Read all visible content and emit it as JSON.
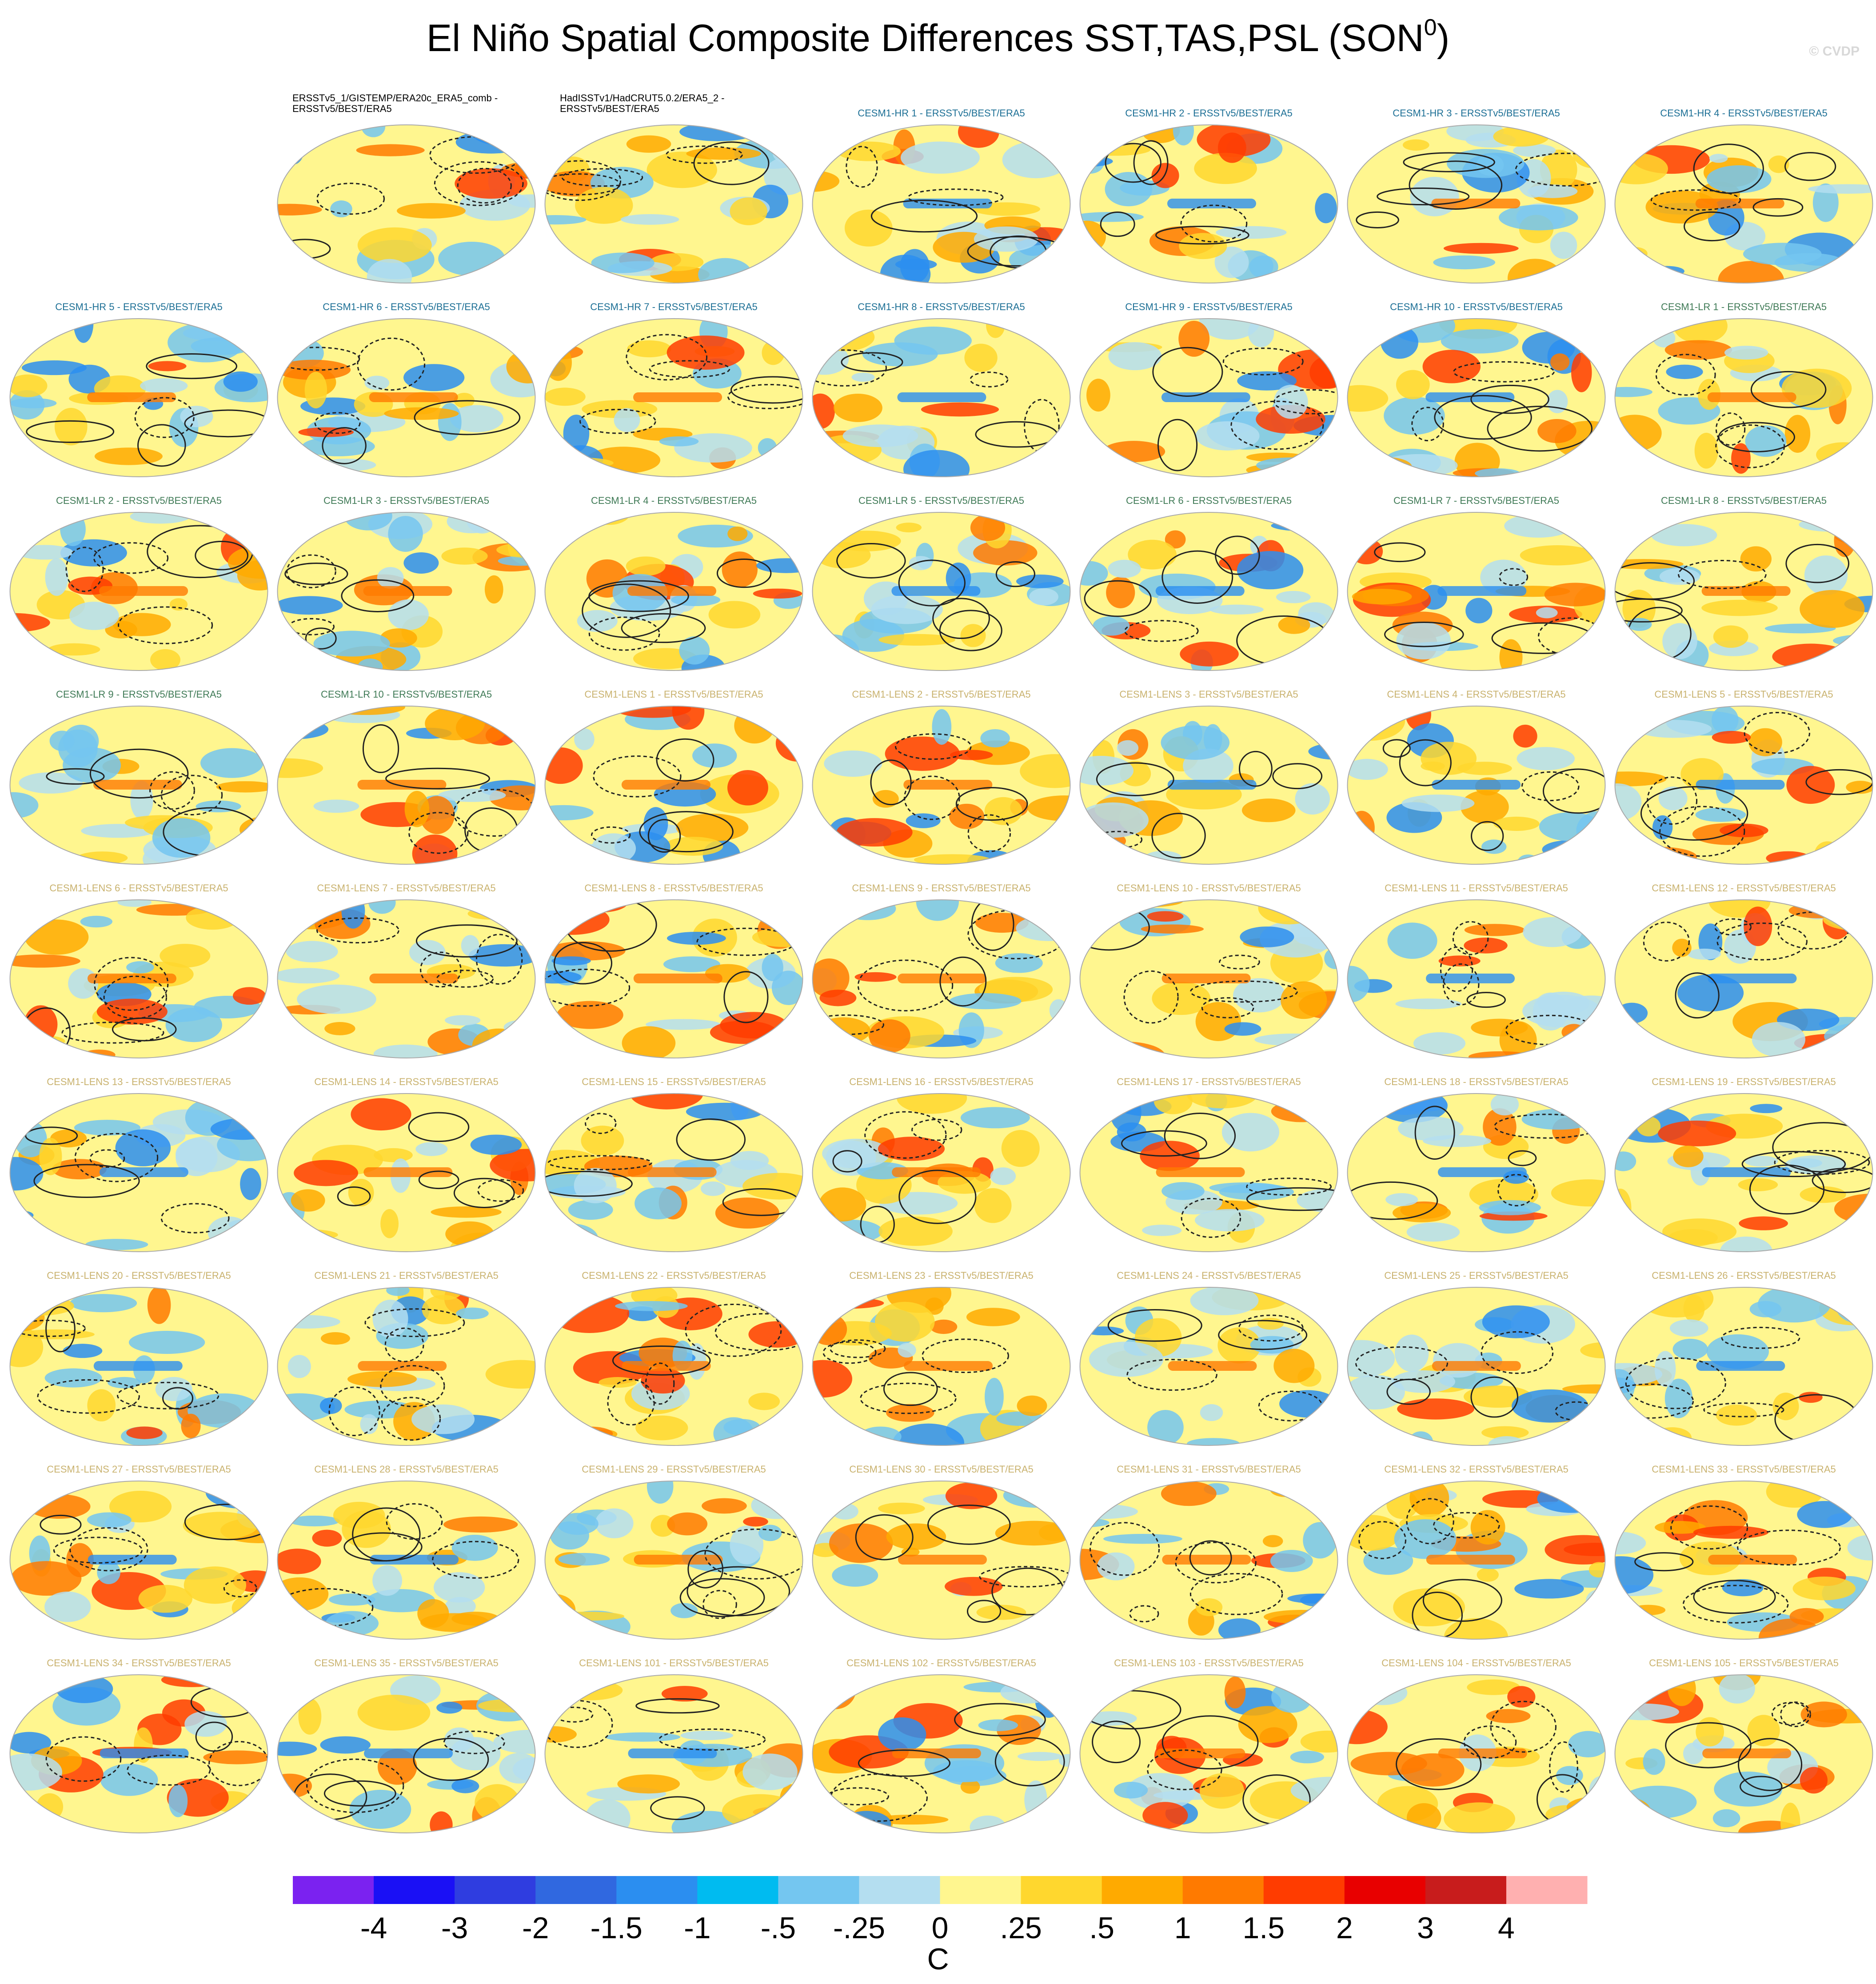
{
  "header": {
    "title": "El Niño Spatial Composite Differences SST,TAS,PSL (SON",
    "title_sup": "0",
    "title_end": ")",
    "credit": "© CVDP"
  },
  "panels": [
    {
      "title": [
        "ERSSTv5_1/GISTEMP/ERA20c_ERA5_comb -",
        "ERSSTv5/BEST/ERA5"
      ],
      "color": "#000000"
    },
    {
      "title": [
        "HadISSTv1/HadCRUT5.0.2/ERA5_2 -",
        "ERSSTv5/BEST/ERA5"
      ],
      "color": "#000000"
    },
    {
      "title": [
        "CESM1-HR 1 - ERSSTv5/BEST/ERA5"
      ],
      "color": "#1c6f95"
    },
    {
      "title": [
        "CESM1-HR 2 - ERSSTv5/BEST/ERA5"
      ],
      "color": "#1c6f95"
    },
    {
      "title": [
        "CESM1-HR 3 - ERSSTv5/BEST/ERA5"
      ],
      "color": "#1c6f95"
    },
    {
      "title": [
        "CESM1-HR 4 - ERSSTv5/BEST/ERA5"
      ],
      "color": "#1c6f95"
    },
    {
      "title": [
        "CESM1-HR 5 - ERSSTv5/BEST/ERA5"
      ],
      "color": "#1c6f95"
    },
    {
      "title": [
        "CESM1-HR 6 - ERSSTv5/BEST/ERA5"
      ],
      "color": "#1c6f95"
    },
    {
      "title": [
        "CESM1-HR 7 - ERSSTv5/BEST/ERA5"
      ],
      "color": "#1c6f95"
    },
    {
      "title": [
        "CESM1-HR 8 - ERSSTv5/BEST/ERA5"
      ],
      "color": "#1c6f95"
    },
    {
      "title": [
        "CESM1-HR 9 - ERSSTv5/BEST/ERA5"
      ],
      "color": "#1c6f95"
    },
    {
      "title": [
        "CESM1-HR 10 - ERSSTv5/BEST/ERA5"
      ],
      "color": "#1c6f95"
    },
    {
      "title": [
        "CESM1-LR 1 - ERSSTv5/BEST/ERA5"
      ],
      "color": "#3f7a56"
    },
    {
      "title": [
        "CESM1-LR 2 - ERSSTv5/BEST/ERA5"
      ],
      "color": "#3f7a56"
    },
    {
      "title": [
        "CESM1-LR 3 - ERSSTv5/BEST/ERA5"
      ],
      "color": "#3f7a56"
    },
    {
      "title": [
        "CESM1-LR 4 - ERSSTv5/BEST/ERA5"
      ],
      "color": "#3f7a56"
    },
    {
      "title": [
        "CESM1-LR 5 - ERSSTv5/BEST/ERA5"
      ],
      "color": "#3f7a56"
    },
    {
      "title": [
        "CESM1-LR 6 - ERSSTv5/BEST/ERA5"
      ],
      "color": "#3f7a56"
    },
    {
      "title": [
        "CESM1-LR 7 - ERSSTv5/BEST/ERA5"
      ],
      "color": "#3f7a56"
    },
    {
      "title": [
        "CESM1-LR 8 - ERSSTv5/BEST/ERA5"
      ],
      "color": "#3f7a56"
    },
    {
      "title": [
        "CESM1-LR 9 - ERSSTv5/BEST/ERA5"
      ],
      "color": "#3f7a56"
    },
    {
      "title": [
        "CESM1-LR 10 - ERSSTv5/BEST/ERA5"
      ],
      "color": "#3f7a56"
    },
    {
      "title": [
        "CESM1-LENS 1 - ERSSTv5/BEST/ERA5"
      ],
      "color": "#c9b26e"
    },
    {
      "title": [
        "CESM1-LENS 2 - ERSSTv5/BEST/ERA5"
      ],
      "color": "#c9b26e"
    },
    {
      "title": [
        "CESM1-LENS 3 - ERSSTv5/BEST/ERA5"
      ],
      "color": "#c9b26e"
    },
    {
      "title": [
        "CESM1-LENS 4 - ERSSTv5/BEST/ERA5"
      ],
      "color": "#c9b26e"
    },
    {
      "title": [
        "CESM1-LENS 5 - ERSSTv5/BEST/ERA5"
      ],
      "color": "#c9b26e"
    },
    {
      "title": [
        "CESM1-LENS 6 - ERSSTv5/BEST/ERA5"
      ],
      "color": "#c9b26e"
    },
    {
      "title": [
        "CESM1-LENS 7 - ERSSTv5/BEST/ERA5"
      ],
      "color": "#c9b26e"
    },
    {
      "title": [
        "CESM1-LENS 8 - ERSSTv5/BEST/ERA5"
      ],
      "color": "#c9b26e"
    },
    {
      "title": [
        "CESM1-LENS 9 - ERSSTv5/BEST/ERA5"
      ],
      "color": "#c9b26e"
    },
    {
      "title": [
        "CESM1-LENS 10 - ERSSTv5/BEST/ERA5"
      ],
      "color": "#c9b26e"
    },
    {
      "title": [
        "CESM1-LENS 11 - ERSSTv5/BEST/ERA5"
      ],
      "color": "#c9b26e"
    },
    {
      "title": [
        "CESM1-LENS 12 - ERSSTv5/BEST/ERA5"
      ],
      "color": "#c9b26e"
    },
    {
      "title": [
        "CESM1-LENS 13 - ERSSTv5/BEST/ERA5"
      ],
      "color": "#c9b26e"
    },
    {
      "title": [
        "CESM1-LENS 14 - ERSSTv5/BEST/ERA5"
      ],
      "color": "#c9b26e"
    },
    {
      "title": [
        "CESM1-LENS 15 - ERSSTv5/BEST/ERA5"
      ],
      "color": "#c9b26e"
    },
    {
      "title": [
        "CESM1-LENS 16 - ERSSTv5/BEST/ERA5"
      ],
      "color": "#c9b26e"
    },
    {
      "title": [
        "CESM1-LENS 17 - ERSSTv5/BEST/ERA5"
      ],
      "color": "#c9b26e"
    },
    {
      "title": [
        "CESM1-LENS 18 - ERSSTv5/BEST/ERA5"
      ],
      "color": "#c9b26e"
    },
    {
      "title": [
        "CESM1-LENS 19 - ERSSTv5/BEST/ERA5"
      ],
      "color": "#c9b26e"
    },
    {
      "title": [
        "CESM1-LENS 20 - ERSSTv5/BEST/ERA5"
      ],
      "color": "#c9b26e"
    },
    {
      "title": [
        "CESM1-LENS 21 - ERSSTv5/BEST/ERA5"
      ],
      "color": "#c9b26e"
    },
    {
      "title": [
        "CESM1-LENS 22 - ERSSTv5/BEST/ERA5"
      ],
      "color": "#c9b26e"
    },
    {
      "title": [
        "CESM1-LENS 23 - ERSSTv5/BEST/ERA5"
      ],
      "color": "#c9b26e"
    },
    {
      "title": [
        "CESM1-LENS 24 - ERSSTv5/BEST/ERA5"
      ],
      "color": "#c9b26e"
    },
    {
      "title": [
        "CESM1-LENS 25 - ERSSTv5/BEST/ERA5"
      ],
      "color": "#c9b26e"
    },
    {
      "title": [
        "CESM1-LENS 26 - ERSSTv5/BEST/ERA5"
      ],
      "color": "#c9b26e"
    },
    {
      "title": [
        "CESM1-LENS 27 - ERSSTv5/BEST/ERA5"
      ],
      "color": "#c9b26e"
    },
    {
      "title": [
        "CESM1-LENS 28 - ERSSTv5/BEST/ERA5"
      ],
      "color": "#c9b26e"
    },
    {
      "title": [
        "CESM1-LENS 29 - ERSSTv5/BEST/ERA5"
      ],
      "color": "#c9b26e"
    },
    {
      "title": [
        "CESM1-LENS 30 - ERSSTv5/BEST/ERA5"
      ],
      "color": "#c9b26e"
    },
    {
      "title": [
        "CESM1-LENS 31 - ERSSTv5/BEST/ERA5"
      ],
      "color": "#c9b26e"
    },
    {
      "title": [
        "CESM1-LENS 32 - ERSSTv5/BEST/ERA5"
      ],
      "color": "#c9b26e"
    },
    {
      "title": [
        "CESM1-LENS 33 - ERSSTv5/BEST/ERA5"
      ],
      "color": "#c9b26e"
    },
    {
      "title": [
        "CESM1-LENS 34 - ERSSTv5/BEST/ERA5"
      ],
      "color": "#c9b26e"
    },
    {
      "title": [
        "CESM1-LENS 35 - ERSSTv5/BEST/ERA5"
      ],
      "color": "#c9b26e"
    },
    {
      "title": [
        "CESM1-LENS 101 - ERSSTv5/BEST/ERA5"
      ],
      "color": "#c9b26e"
    },
    {
      "title": [
        "CESM1-LENS 102 - ERSSTv5/BEST/ERA5"
      ],
      "color": "#c9b26e"
    },
    {
      "title": [
        "CESM1-LENS 103 - ERSSTv5/BEST/ERA5"
      ],
      "color": "#c9b26e"
    },
    {
      "title": [
        "CESM1-LENS 104 - ERSSTv5/BEST/ERA5"
      ],
      "color": "#c9b26e"
    },
    {
      "title": [
        "CESM1-LENS 105 - ERSSTv5/BEST/ERA5"
      ],
      "color": "#c9b26e"
    }
  ],
  "colorbar": {
    "colors": [
      "#7b22f0",
      "#1a10f5",
      "#2f3de0",
      "#3068e0",
      "#2b8ef0",
      "#00bbf0",
      "#74c6f0",
      "#b4def0",
      "#fff68f",
      "#ffd72e",
      "#ffaa00",
      "#ff7a00",
      "#ff3c00",
      "#e80000",
      "#c81c1c",
      "#ffb0b0"
    ],
    "labels": [
      "-4",
      "-3",
      "-2",
      "-1.5",
      "-1",
      "-.5",
      "-.25",
      "0",
      ".25",
      ".5",
      "1",
      "1.5",
      "2",
      "3",
      "4"
    ],
    "unit": "C"
  }
}
